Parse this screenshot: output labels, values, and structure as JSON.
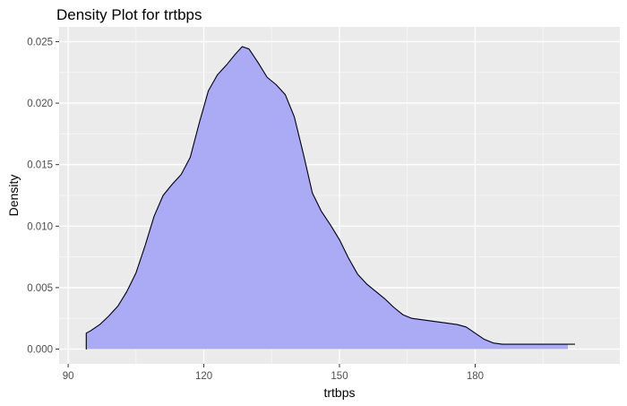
{
  "chart_data": {
    "type": "area",
    "title": "Density Plot for trtbps",
    "xlabel": "trtbps",
    "ylabel": "Density",
    "xlim": [
      88,
      212
    ],
    "ylim": [
      -0.0012,
      0.0262
    ],
    "x_ticks": [
      90,
      120,
      150,
      180
    ],
    "x_tick_labels": [
      "90",
      "120",
      "150",
      "180"
    ],
    "y_ticks": [
      0.0,
      0.005,
      0.01,
      0.015,
      0.02,
      0.025
    ],
    "y_tick_labels": [
      "0.000",
      "0.005",
      "0.010",
      "0.015",
      "0.020",
      "0.025"
    ],
    "grid": true,
    "legend": "none",
    "colors": {
      "fill": "#aaaaf5",
      "stroke": "#000000",
      "panel": "#ebebeb",
      "grid_major": "#ffffff",
      "grid_minor": "#f5f5f5",
      "tick": "#333333"
    },
    "series": [
      {
        "x": [
          94,
          95,
          97,
          99,
          101,
          103,
          105,
          107,
          109,
          111,
          113,
          115,
          117,
          119,
          121,
          123,
          125,
          127,
          128.5,
          130,
          132,
          134,
          136,
          138,
          140,
          142,
          144,
          146,
          148,
          150,
          152,
          154,
          156,
          158,
          160,
          162,
          164,
          166,
          168,
          170,
          172,
          174,
          176,
          178,
          180,
          182,
          184,
          186,
          188,
          190,
          192,
          194,
          196,
          198,
          200,
          202,
          200.5
        ],
        "y": [
          0.0013,
          0.0015,
          0.002,
          0.0027,
          0.0035,
          0.0047,
          0.0062,
          0.0084,
          0.0108,
          0.0125,
          0.0134,
          0.0142,
          0.0156,
          0.0184,
          0.021,
          0.0223,
          0.0231,
          0.024,
          0.0246,
          0.0244,
          0.0233,
          0.0221,
          0.0215,
          0.0207,
          0.0189,
          0.0159,
          0.0127,
          0.0112,
          0.0101,
          0.0089,
          0.0074,
          0.0061,
          0.0053,
          0.0047,
          0.0041,
          0.0034,
          0.0028,
          0.0025,
          0.0024,
          0.0023,
          0.0022,
          0.0021,
          0.002,
          0.0018,
          0.0013,
          0.0008,
          0.0005,
          0.0004,
          0.0004,
          0.0004,
          0.0004,
          0.0004,
          0.0004,
          0.0004,
          0.0004,
          0.0004,
          0.0004
        ]
      }
    ]
  }
}
